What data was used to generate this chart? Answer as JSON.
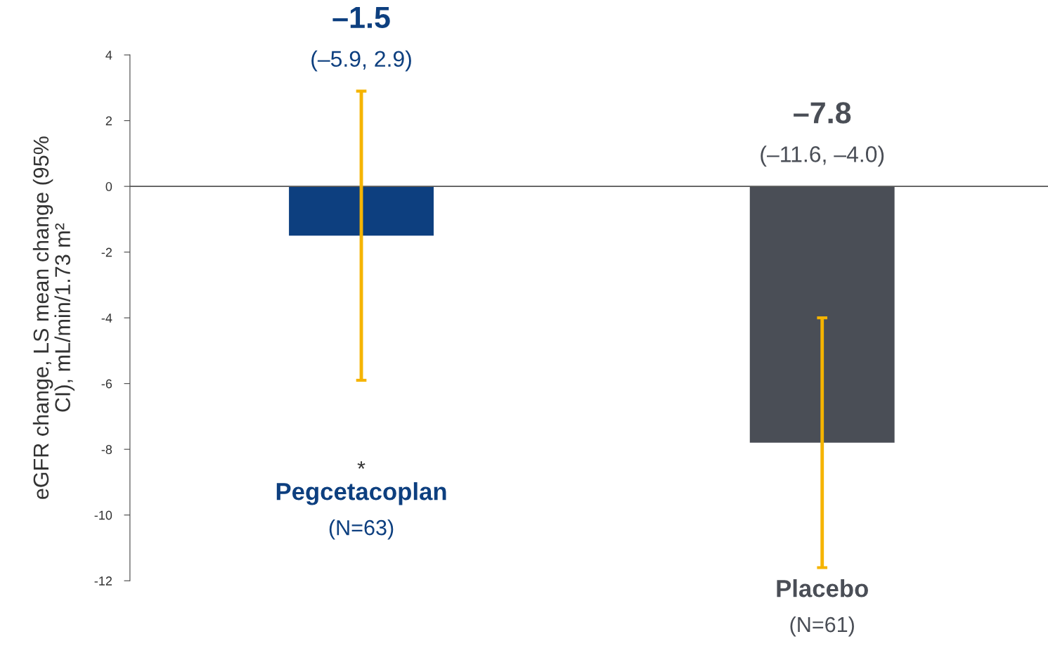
{
  "chart_data": {
    "type": "bar",
    "ylabel": "eGFR change, LS mean change (95%\nCI), mL/min/1.73 m²",
    "categories": [
      "Pegcetacoplan\n(N=63)",
      "Placebo\n(N=61)"
    ],
    "values": [
      -1.5,
      -7.8
    ],
    "colors": [
      "#0d3f7f",
      "#4a4e56"
    ],
    "errors": [
      [
        -5.9,
        2.9
      ],
      [
        -11.6,
        -4.0
      ]
    ],
    "annotations": [
      "–1.5",
      "(–5.9, 2.9)",
      "–7.8",
      "(–11.6, –4.0)",
      "*"
    ],
    "ref_lines": [
      {
        "axis": "y",
        "value": 0,
        "color": "#555555"
      }
    ],
    "ylim": [
      -12,
      4
    ],
    "yticks": [
      {
        "value": -12,
        "label": "-12"
      },
      {
        "value": -10,
        "label": "-10"
      },
      {
        "value": -8,
        "label": "-8"
      },
      {
        "value": -6,
        "label": "-6"
      },
      {
        "value": -4,
        "label": "-4"
      },
      {
        "value": -2,
        "label": "-2"
      },
      0,
      2,
      4
    ]
  }
}
